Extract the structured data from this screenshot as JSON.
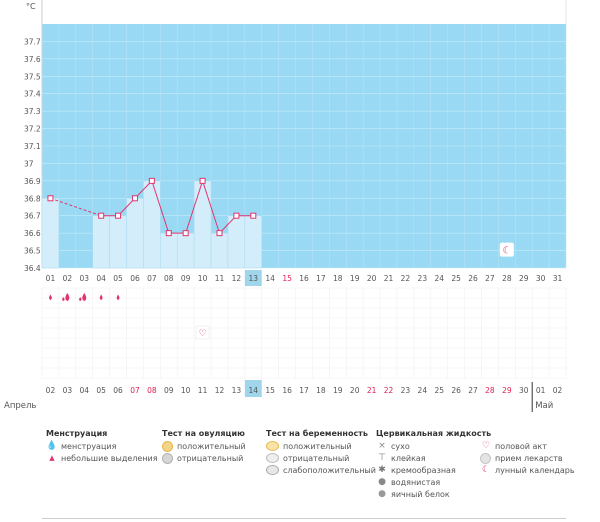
{
  "chart_data": {
    "type": "bar",
    "unit": "°C",
    "ylim": [
      36.4,
      37.8
    ],
    "yticks": [
      "37.7",
      "37.6",
      "37.5",
      "37.4",
      "37.3",
      "37.2",
      "37.1",
      "37",
      "36.9",
      "36.8",
      "36.7",
      "36.6",
      "36.5",
      "36.4"
    ],
    "days_top": [
      "01",
      "02",
      "03",
      "04",
      "05",
      "06",
      "07",
      "08",
      "09",
      "10",
      "11",
      "12",
      "13",
      "14",
      "15",
      "16",
      "17",
      "18",
      "19",
      "20",
      "21",
      "22",
      "23",
      "24",
      "25",
      "26",
      "27",
      "28",
      "29",
      "30",
      "31"
    ],
    "highlight_top": "13",
    "red_top": [
      "15"
    ],
    "temperatures": [
      36.8,
      null,
      null,
      36.7,
      36.7,
      36.8,
      36.9,
      36.6,
      36.6,
      36.9,
      36.6,
      36.7,
      36.7,
      null,
      null,
      null,
      null,
      null,
      null,
      null,
      null,
      null,
      null,
      null,
      null,
      null,
      null,
      null,
      null,
      null,
      null
    ],
    "menstruation_days": [
      "01",
      "02",
      "03",
      "04",
      "05"
    ],
    "menstruation_types": [
      "light",
      "heavy",
      "heavy",
      "light",
      "light"
    ],
    "intercourse_day": "10",
    "moon_day": "28",
    "dates_bottom": [
      "02",
      "03",
      "04",
      "05",
      "06",
      "07",
      "08",
      "09",
      "10",
      "11",
      "12",
      "13",
      "14",
      "15",
      "16",
      "17",
      "18",
      "19",
      "20",
      "21",
      "22",
      "23",
      "24",
      "25",
      "26",
      "27",
      "28",
      "29",
      "30",
      "01",
      "02"
    ],
    "highlight_bottom": "14",
    "red_bottom_idx": [
      5,
      6,
      19,
      20,
      26,
      27
    ],
    "month_left": "Апрель",
    "month_right": "Май"
  },
  "legend": {
    "menstruation": {
      "title": "Менструация",
      "items": [
        "менструация",
        "небольшие выделения"
      ]
    },
    "ovulation": {
      "title": "Тест на овуляцию",
      "items": [
        "положительный",
        "отрицательный"
      ]
    },
    "pregnancy": {
      "title": "Тест на беременность",
      "items": [
        "положительный",
        "отрицательный",
        "слабоположительный"
      ]
    },
    "cervical": {
      "title": "Цервикальная жидкость",
      "items": [
        "сухо",
        "клейкая",
        "кремообразная",
        "водянистая",
        "яичный белок"
      ]
    },
    "other": {
      "items": [
        "половой акт",
        "прием лекарств",
        "лунный календарь"
      ]
    }
  },
  "colors": {
    "plot_bg": "#99d9f3",
    "bar_fill": "#d3edfa",
    "line": "#e0356f",
    "highlight": "#9fd6ec",
    "red_text": "#e02050",
    "axis_text": "#555555"
  }
}
